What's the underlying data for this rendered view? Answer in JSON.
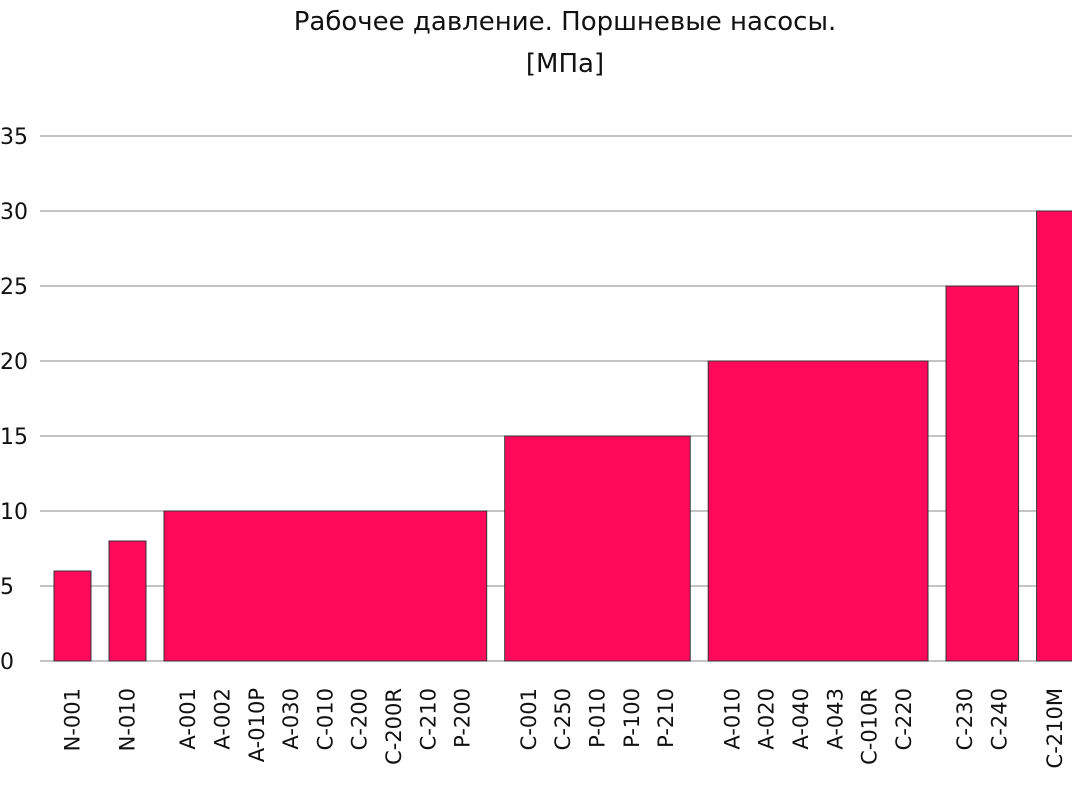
{
  "chart_data": {
    "type": "bar",
    "title": "Рабочее давление. Поршневые насосы.",
    "subtitle": "[МПа]",
    "xlabel": "",
    "ylabel": "",
    "ylim": [
      0,
      35
    ],
    "yticks": [
      0,
      5,
      10,
      15,
      20,
      25,
      30,
      35
    ],
    "grid": true,
    "bar_color": "#FF0A5A",
    "groups": [
      {
        "categories": [
          "N-001"
        ],
        "value": 6
      },
      {
        "categories": [
          "N-010"
        ],
        "value": 8
      },
      {
        "categories": [
          "A-001",
          "A-002",
          "A-010P",
          "A-030",
          "C-010",
          "C-200",
          "C-200R",
          "C-210",
          "P-200"
        ],
        "value": 10
      },
      {
        "categories": [
          "C-001",
          "C-250",
          "P-010",
          "P-100",
          "P-210"
        ],
        "value": 15
      },
      {
        "categories": [
          "A-010",
          "A-020",
          "A-040",
          "A-043",
          "C-010R",
          "C-220"
        ],
        "value": 20
      },
      {
        "categories": [
          "C-230",
          "C-240"
        ],
        "value": 25
      },
      {
        "categories": [
          "C-210M"
        ],
        "value": 30
      }
    ]
  }
}
